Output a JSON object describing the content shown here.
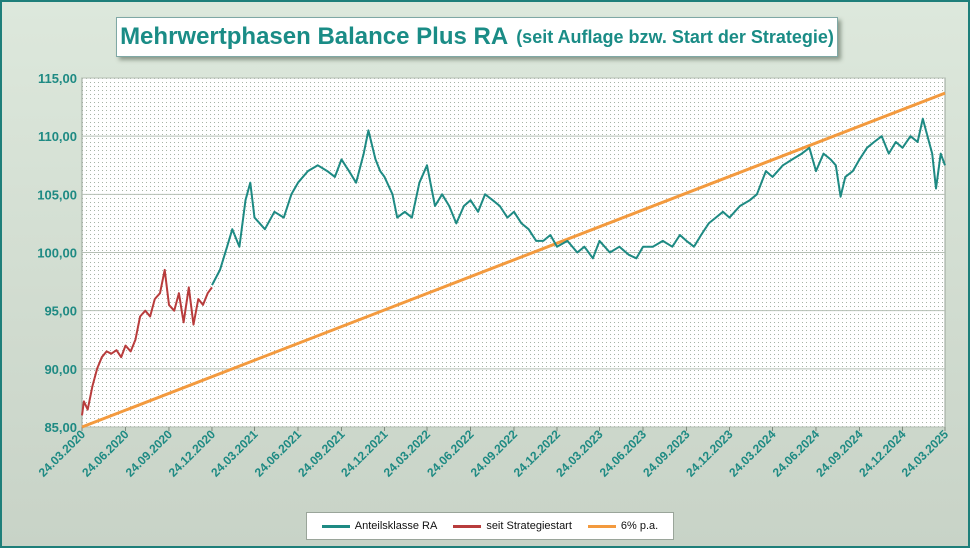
{
  "title": {
    "main": "Mehrwertphasen Balance Plus RA",
    "sub": "(seit Auflage bzw. Start der Strategie)"
  },
  "colors": {
    "series_ra": "#1e8a83",
    "series_start": "#b83c3c",
    "series_6pct": "#f39a3e",
    "axis_label": "#1e8a83"
  },
  "chart_data": {
    "type": "line",
    "title": "Mehrwertphasen Balance Plus RA (seit Auflage bzw. Start der Strategie)",
    "xlabel": "",
    "ylabel": "",
    "ylim": [
      85,
      115
    ],
    "xlim": [
      "2020-03-24",
      "2025-03-24"
    ],
    "grid": true,
    "legend_position": "bottom",
    "y_ticks": [
      "85,00",
      "90,00",
      "95,00",
      "100,00",
      "105,00",
      "110,00",
      "115,00"
    ],
    "x_ticks": [
      "24.03.2020",
      "24.06.2020",
      "24.09.2020",
      "24.12.2020",
      "24.03.2021",
      "24.06.2021",
      "24.09.2021",
      "24.12.2021",
      "24.03.2022",
      "24.06.2022",
      "24.09.2022",
      "24.12.2022",
      "24.03.2023",
      "24.06.2023",
      "24.09.2023",
      "24.12.2023",
      "24.03.2024",
      "24.06.2024",
      "24.09.2024",
      "24.12.2024",
      "24.03.2025"
    ],
    "series": [
      {
        "name": "Anteilsklasse RA",
        "x": [
          "2020-12-24",
          "2021-01-10",
          "2021-01-25",
          "2021-02-05",
          "2021-02-20",
          "2021-03-05",
          "2021-03-15",
          "2021-03-24",
          "2021-04-15",
          "2021-05-05",
          "2021-05-25",
          "2021-06-10",
          "2021-06-24",
          "2021-07-15",
          "2021-08-05",
          "2021-08-25",
          "2021-09-10",
          "2021-09-24",
          "2021-10-10",
          "2021-10-25",
          "2021-11-10",
          "2021-11-20",
          "2021-12-05",
          "2021-12-15",
          "2021-12-24",
          "2022-01-10",
          "2022-01-20",
          "2022-02-05",
          "2022-02-20",
          "2022-03-08",
          "2022-03-24",
          "2022-04-10",
          "2022-04-25",
          "2022-05-10",
          "2022-05-25",
          "2022-06-10",
          "2022-06-24",
          "2022-07-10",
          "2022-07-25",
          "2022-08-10",
          "2022-08-25",
          "2022-09-10",
          "2022-09-24",
          "2022-10-10",
          "2022-10-25",
          "2022-11-10",
          "2022-11-25",
          "2022-12-10",
          "2022-12-24",
          "2023-01-15",
          "2023-02-05",
          "2023-02-20",
          "2023-03-10",
          "2023-03-24",
          "2023-04-15",
          "2023-05-05",
          "2023-05-25",
          "2023-06-10",
          "2023-06-24",
          "2023-07-15",
          "2023-08-05",
          "2023-08-25",
          "2023-09-10",
          "2023-09-24",
          "2023-10-10",
          "2023-10-25",
          "2023-11-10",
          "2023-11-25",
          "2023-12-10",
          "2023-12-24",
          "2024-01-15",
          "2024-02-05",
          "2024-02-20",
          "2024-03-10",
          "2024-03-24",
          "2024-04-15",
          "2024-05-05",
          "2024-05-25",
          "2024-06-10",
          "2024-06-24",
          "2024-07-10",
          "2024-07-25",
          "2024-08-05",
          "2024-08-15",
          "2024-08-25",
          "2024-09-10",
          "2024-09-24",
          "2024-10-10",
          "2024-10-25",
          "2024-11-10",
          "2024-11-25",
          "2024-12-10",
          "2024-12-24",
          "2025-01-10",
          "2025-01-25",
          "2025-02-05",
          "2025-02-15",
          "2025-02-25",
          "2025-03-05",
          "2025-03-15",
          "2025-03-24"
        ],
        "y": [
          97.2,
          98.5,
          100.5,
          102.0,
          100.5,
          104.5,
          106.0,
          103.0,
          102.0,
          103.5,
          103.0,
          105.0,
          106.0,
          107.0,
          107.5,
          107.0,
          106.5,
          108.0,
          107.0,
          106.0,
          108.5,
          110.5,
          108.0,
          107.0,
          106.5,
          105.0,
          103.0,
          103.5,
          103.0,
          106.0,
          107.5,
          104.0,
          105.0,
          104.0,
          102.5,
          104.0,
          104.5,
          103.5,
          105.0,
          104.5,
          104.0,
          103.0,
          103.5,
          102.5,
          102.0,
          101.0,
          101.0,
          101.5,
          100.5,
          101.0,
          100.0,
          100.5,
          99.5,
          101.0,
          100.0,
          100.5,
          99.8,
          99.5,
          100.5,
          100.5,
          101.0,
          100.5,
          101.5,
          101.0,
          100.5,
          101.5,
          102.5,
          103.0,
          103.5,
          103.0,
          104.0,
          104.5,
          105.0,
          107.0,
          106.5,
          107.5,
          108.0,
          108.5,
          109.0,
          107.0,
          108.5,
          108.0,
          107.5,
          104.8,
          106.5,
          107.0,
          108.0,
          109.0,
          109.5,
          110.0,
          108.5,
          109.5,
          109.0,
          110.0,
          109.5,
          111.5,
          110.0,
          108.5,
          105.5,
          108.5,
          107.5
        ]
      },
      {
        "name": "seit Strategiestart",
        "x": [
          "2020-03-24",
          "2020-03-28",
          "2020-04-05",
          "2020-04-15",
          "2020-04-25",
          "2020-05-05",
          "2020-05-15",
          "2020-05-25",
          "2020-06-05",
          "2020-06-15",
          "2020-06-24",
          "2020-07-05",
          "2020-07-15",
          "2020-07-25",
          "2020-08-05",
          "2020-08-15",
          "2020-08-25",
          "2020-09-05",
          "2020-09-15",
          "2020-09-24",
          "2020-10-05",
          "2020-10-15",
          "2020-10-25",
          "2020-11-05",
          "2020-11-15",
          "2020-11-25",
          "2020-12-05",
          "2020-12-15",
          "2020-12-24"
        ],
        "y": [
          86.0,
          87.2,
          86.5,
          88.5,
          90.0,
          91.0,
          91.5,
          91.3,
          91.6,
          91.0,
          92.0,
          91.5,
          92.5,
          94.5,
          95.0,
          94.5,
          96.0,
          96.5,
          98.5,
          95.5,
          95.0,
          96.5,
          94.0,
          97.0,
          93.8,
          96.0,
          95.5,
          96.5,
          97.0
        ]
      },
      {
        "name": "6% p.a.",
        "x": [
          "2020-03-24",
          "2025-03-24"
        ],
        "y": [
          85.0,
          113.7
        ]
      }
    ]
  },
  "legend": {
    "items": [
      {
        "label": "Anteilsklasse RA",
        "color": "#1e8a83"
      },
      {
        "label": "seit Strategiestart",
        "color": "#b83c3c"
      },
      {
        "label": "6% p.a.",
        "color": "#f39a3e"
      }
    ]
  }
}
